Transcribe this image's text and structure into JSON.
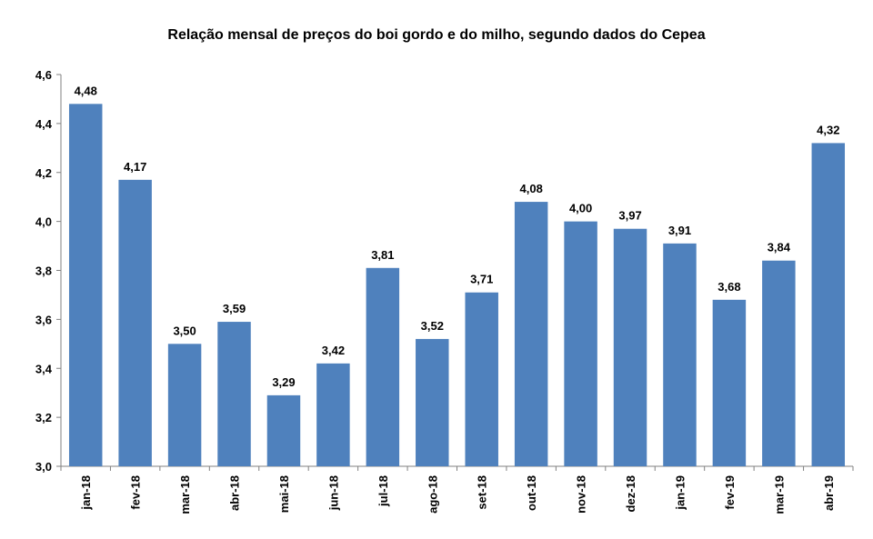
{
  "chart_data": {
    "type": "bar",
    "title": "Relação mensal de preços do boi gordo e do milho, segundo dados do Cepea",
    "xlabel": "",
    "ylabel": "",
    "categories": [
      "jan-18",
      "fev-18",
      "mar-18",
      "abr-18",
      "mai-18",
      "jun-18",
      "jul-18",
      "ago-18",
      "set-18",
      "out-18",
      "nov-18",
      "dez-18",
      "jan-19",
      "fev-19",
      "mar-19",
      "abr-19"
    ],
    "values": [
      4.48,
      4.17,
      3.5,
      3.59,
      3.29,
      3.42,
      3.81,
      3.52,
      3.71,
      4.08,
      4.0,
      3.97,
      3.91,
      3.68,
      3.84,
      4.32
    ],
    "value_labels": [
      "4,48",
      "4,17",
      "3,50",
      "3,59",
      "3,29",
      "3,42",
      "3,81",
      "3,52",
      "3,71",
      "4,08",
      "4,00",
      "3,97",
      "3,91",
      "3,68",
      "3,84",
      "4,32"
    ],
    "ylim": [
      3.0,
      4.6
    ],
    "yticks": [
      3.0,
      3.2,
      3.4,
      3.6,
      3.8,
      4.0,
      4.2,
      4.4,
      4.6
    ],
    "ytick_labels": [
      "3,0",
      "3,2",
      "3,4",
      "3,6",
      "3,8",
      "4,0",
      "4,2",
      "4,4",
      "4,6"
    ],
    "grid": false,
    "legend": "none",
    "bar_color": "#4f81bd"
  }
}
